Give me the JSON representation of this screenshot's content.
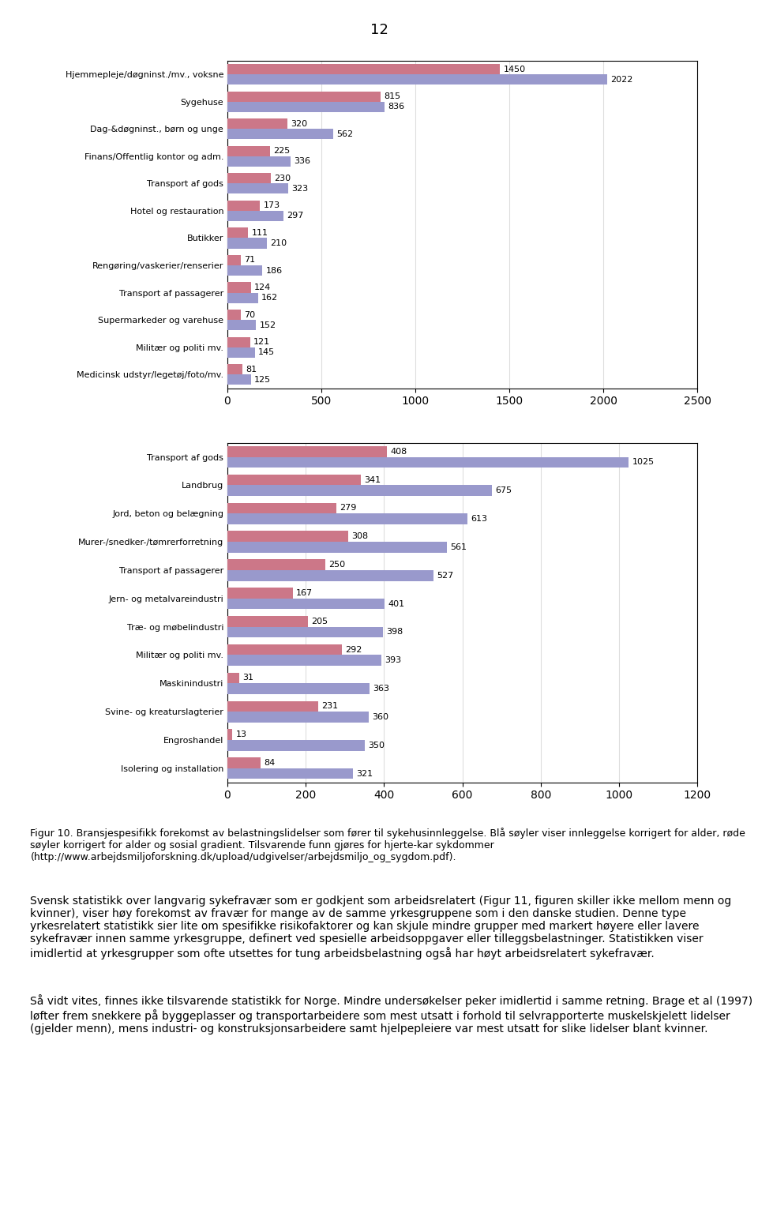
{
  "chart_data": [
    {
      "type": "bar",
      "orientation": "horizontal",
      "data_labels": true,
      "grid": true,
      "categories": [
        "Hjemmepleje/døgninst./mv., voksne",
        "Sygehuse",
        "Dag-&døgninst., børn og unge",
        "Finans/Offentlig kontor og adm.",
        "Transport af gods",
        "Hotel og restauration",
        "Butikker",
        "Rengøring/vaskerier/renserier",
        "Transport af passagerer",
        "Supermarkeder og varehuse",
        "Militær og politi mv.",
        "Medicinsk udstyr/legetøj/foto/mv."
      ],
      "series": [
        {
          "color": "#9999CC",
          "values": [
            2022,
            836,
            562,
            336,
            323,
            297,
            210,
            186,
            162,
            152,
            145,
            125
          ]
        },
        {
          "color": "#CC7788",
          "values": [
            1450,
            815,
            320,
            225,
            230,
            173,
            111,
            71,
            124,
            70,
            121,
            81
          ]
        }
      ],
      "xlim": [
        0,
        2500
      ],
      "xticks": [
        0,
        500,
        1000,
        1500,
        2000,
        2500
      ]
    },
    {
      "type": "bar",
      "orientation": "horizontal",
      "data_labels": true,
      "grid": true,
      "categories": [
        "Transport af gods",
        "Landbrug",
        "Jord, beton og belægning",
        "Murer-/snedker-/tømrerforretning",
        "Transport af passagerer",
        "Jern- og metalvareindustri",
        "Træ- og møbelindustri",
        "Militær og politi mv.",
        "Maskinindustri",
        "Svine- og kreaturslagterier",
        "Engroshandel",
        "Isolering og installation"
      ],
      "series": [
        {
          "color": "#9999CC",
          "values": [
            1025,
            675,
            613,
            561,
            527,
            401,
            398,
            393,
            363,
            360,
            350,
            321
          ]
        },
        {
          "color": "#CC7788",
          "values": [
            408,
            341,
            279,
            308,
            250,
            167,
            205,
            292,
            31,
            231,
            13,
            84
          ]
        }
      ],
      "xlim": [
        0,
        1200
      ],
      "xticks": [
        0,
        200,
        400,
        600,
        800,
        1000,
        1200
      ]
    }
  ],
  "annotations": [
    "12",
    "Figur 10. Bransjespesifikk forekomst av belastningslidelser som fører til sykehusinnleggelse. Blå søyler viser innleggelse korrigert for alder, røde søyler korrigert for alder og sosial gradient. Tilsvarende funn gjøres for hjerte-kar sykdommer (http://www.arbejdsmiljoforskning.dk/upload/udgivelser/arbejdsmiljo_og_sygdom.pdf).",
    "Svensk statistikk over langvarig sykefravær som er godkjent som arbeidsrelatert (Figur 11, figuren skiller ikke mellom menn og kvinner), viser høy forekomst av fravær for mange av de samme yrkesgruppene som i den danske studien. Denne type yrkesrelatert statistikk sier lite om spesifikke risikofaktorer og kan skjule mindre grupper med markert høyere eller lavere sykefravær innen samme yrkesgruppe, definert ved spesielle arbeidsoppgaver eller tilleggsbelastninger. Statistikken viser imidlertid at yrkesgrupper som ofte utsettes for tung arbeidsbelastning også har høyt arbeidsrelatert sykefravær.",
    "Så vidt vites, finnes ikke tilsvarende statistikk for Norge. Mindre undersøkelser peker imidlertid i samme retning. Brage et al (1997) løfter frem snekkere på byggeplasser og transportarbeidere som mest utsatt i forhold til selvrapporterte muskelskjelett lidelser (gjelder menn), mens industri- og konstruksjonsarbeidere samt hjelpepleiere var mest utsatt for slike lidelser blant kvinner."
  ]
}
